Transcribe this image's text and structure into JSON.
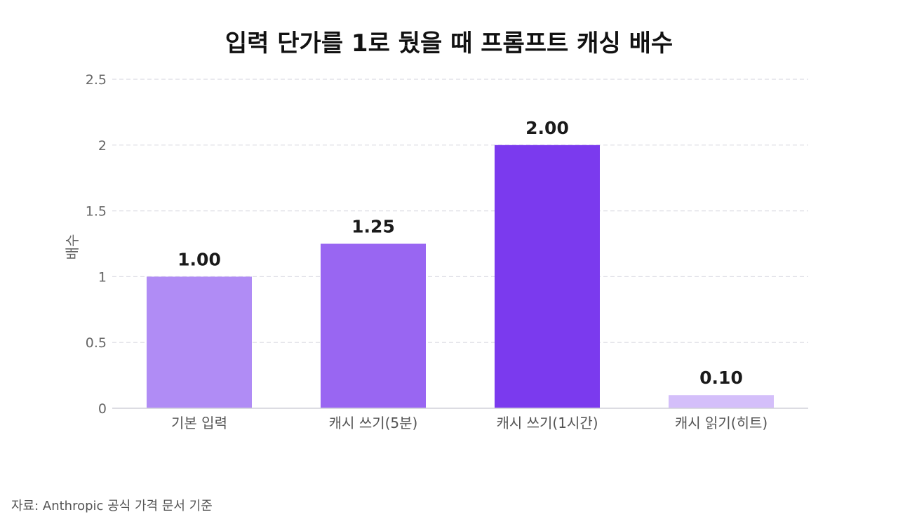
{
  "chart_data": {
    "type": "bar",
    "title": "입력 단가를 1로 뒀을 때 프롬프트 캐싱 배수",
    "xlabel": "",
    "ylabel": "배수",
    "categories": [
      "기본 입력",
      "캐시 쓰기(5분)",
      "캐시 쓰기(1시간)",
      "캐시 읽기(히트)"
    ],
    "values": [
      1.0,
      1.25,
      2.0,
      0.1
    ],
    "value_labels": [
      "1.00",
      "1.25",
      "2.00",
      "0.10"
    ],
    "bar_colors": [
      "#b08cf5",
      "#9966f2",
      "#7b3aee",
      "#d4bffa"
    ],
    "ylim": [
      0,
      2.5
    ],
    "yticks": [
      0,
      0.5,
      1,
      1.5,
      2,
      2.5
    ],
    "ytick_labels": [
      "0",
      "0.5",
      "1",
      "1.5",
      "2",
      "2.5"
    ],
    "grid": true,
    "legend": "none"
  },
  "source_note": "자료: Anthropic 공식 가격 문서 기준"
}
